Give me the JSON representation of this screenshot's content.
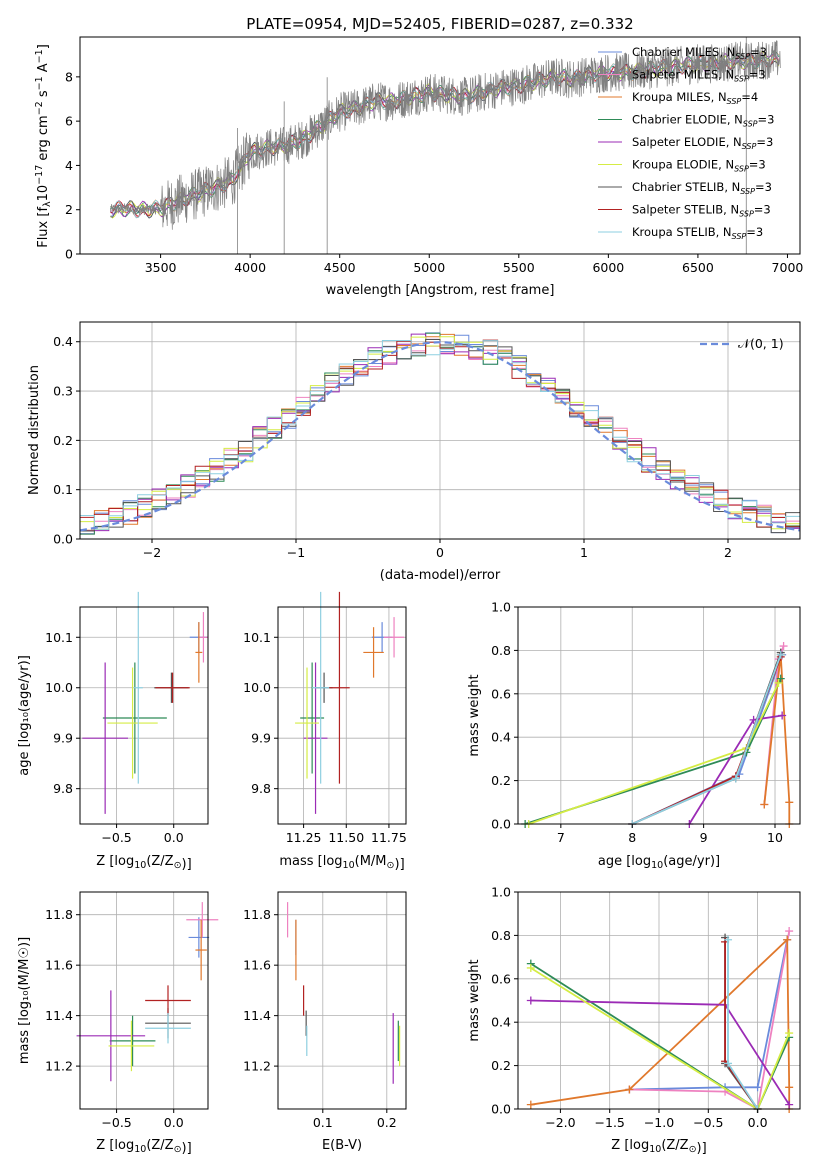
{
  "figure_title": "PLATE=0954, MJD=52405, FIBERID=0287, z=0.332",
  "palette": {
    "Chabrier MILES": "#6a8bdb",
    "Salpeter MILES": "#ee82c0",
    "Kroupa MILES": "#e0782c",
    "Chabrier ELODIE": "#2e8b57",
    "Salpeter ELODIE": "#9b2bb5",
    "Kroupa ELODIE": "#d5ec44",
    "Chabrier STELIB": "#555555",
    "Salpeter STELIB": "#b22222",
    "Kroupa STELIB": "#8ecfe0",
    "normal": "#6a8bdb",
    "spectrum": "#808080"
  },
  "chart_data": [
    {
      "id": "spectrum",
      "type": "line",
      "xlabel": "wavelength [Angstrom, rest frame]",
      "ylabel_main": "Flux [f",
      "ylabel_sub": "λ",
      "ylabel_tail": "10",
      "ylabel_exp1": "−17",
      "ylabel_mid": " erg cm",
      "ylabel_exp2": "−2",
      "ylabel_mid2": " s",
      "ylabel_exp3": "−1",
      "ylabel_mid3": " A",
      "ylabel_exp4": "−1",
      "ylabel_end": "]",
      "xlim": [
        3050,
        7070
      ],
      "ylim": [
        0,
        9.8
      ],
      "xticks": [
        "3500",
        "4000",
        "4500",
        "5000",
        "5500",
        "6000",
        "6500",
        "7000"
      ],
      "yticks": [
        "0",
        "2",
        "4",
        "6",
        "8"
      ],
      "grid": false,
      "legend_position": "lower right",
      "continuum": {
        "x": [
          3220,
          3300,
          3400,
          3500,
          3600,
          3700,
          3800,
          3900,
          4000,
          4100,
          4200,
          4300,
          4400,
          4500,
          4600,
          4700,
          4800,
          4900,
          5000,
          5100,
          5200,
          5300,
          5400,
          5500,
          5600,
          5700,
          5800,
          5900,
          6000,
          6100,
          6200,
          6300,
          6400,
          6500,
          6600,
          6700,
          6800,
          6900,
          6960
        ],
        "y": [
          2.0,
          2.05,
          2.0,
          2.05,
          2.4,
          2.7,
          3.0,
          3.3,
          4.6,
          4.8,
          4.9,
          5.2,
          5.8,
          6.4,
          6.6,
          6.9,
          6.9,
          7.1,
          7.3,
          7.2,
          7.1,
          7.3,
          7.5,
          7.6,
          7.8,
          8.0,
          7.9,
          8.1,
          8.2,
          8.2,
          8.3,
          8.4,
          8.5,
          8.6,
          8.6,
          8.7,
          8.7,
          8.8,
          8.8
        ]
      },
      "legend": [
        {
          "imf": "Chabrier",
          "lib": "MILES",
          "n": "3"
        },
        {
          "imf": "Salpeter",
          "lib": "MILES",
          "n": "3"
        },
        {
          "imf": "Kroupa",
          "lib": "MILES",
          "n": "4"
        },
        {
          "imf": "Chabrier",
          "lib": "ELODIE",
          "n": "3"
        },
        {
          "imf": "Salpeter",
          "lib": "ELODIE",
          "n": "3"
        },
        {
          "imf": "Kroupa",
          "lib": "ELODIE",
          "n": "3"
        },
        {
          "imf": "Chabrier",
          "lib": "STELIB",
          "n": "3"
        },
        {
          "imf": "Salpeter",
          "lib": "STELIB",
          "n": "3"
        },
        {
          "imf": "Kroupa",
          "lib": "STELIB",
          "n": "3"
        }
      ],
      "legend_n_prefix": "N",
      "legend_n_sub": "SSP"
    },
    {
      "id": "residuals",
      "type": "histogram",
      "xlabel": "(data-model)/error",
      "ylabel": "Normed distribution",
      "xlim": [
        -2.5,
        2.5
      ],
      "ylim": [
        0,
        0.44
      ],
      "xticks": [
        -2,
        -1,
        0,
        1,
        2
      ],
      "xtick_labels": [
        "−2",
        "−1",
        "0",
        "1",
        "2"
      ],
      "yticks": [
        0.0,
        0.1,
        0.2,
        0.3,
        0.4
      ],
      "ytick_labels": [
        "0.0",
        "0.1",
        "0.2",
        "0.3",
        "0.4"
      ],
      "grid": true,
      "bin_width": 0.1,
      "legend_label": "𝒩(0, 1)",
      "legend_position": "upper right"
    },
    {
      "id": "age_vs_Z",
      "type": "errorbar",
      "xlabel_main": "Z [log",
      "xlabel_sub": "10",
      "xlabel_tail": "(Z/Z",
      "xlabel_sun": "⊙",
      "xlabel_end": ")]",
      "ylabel": "age  [log₁₀(age/yr)]",
      "xlim": [
        -0.82,
        0.3
      ],
      "ylim": [
        9.73,
        10.16
      ],
      "xticks": [
        -0.5,
        0.0
      ],
      "xtick_labels": [
        "−0.5",
        "0.0"
      ],
      "yticks": [
        9.8,
        9.9,
        10.0,
        10.1
      ],
      "ytick_labels": [
        "9.8",
        "9.9",
        "10.0",
        "10.1"
      ],
      "grid": true,
      "points": [
        {
          "model": "Chabrier MILES",
          "x": 0.22,
          "y": 10.1,
          "xerr": 0.08,
          "yerr": 0.03
        },
        {
          "model": "Salpeter MILES",
          "x": 0.26,
          "y": 10.1,
          "xerr": 0.04,
          "yerr": 0.05
        },
        {
          "model": "Kroupa MILES",
          "x": 0.22,
          "y": 10.07,
          "xerr": 0.03,
          "yerr": 0.06
        },
        {
          "model": "Chabrier ELODIE",
          "x": -0.34,
          "y": 9.94,
          "xerr": 0.28,
          "yerr": 0.11
        },
        {
          "model": "Salpeter ELODIE",
          "x": -0.6,
          "y": 9.9,
          "xerr": 0.2,
          "yerr": 0.15
        },
        {
          "model": "Kroupa ELODIE",
          "x": -0.36,
          "y": 9.93,
          "xerr": 0.22,
          "yerr": 0.11
        },
        {
          "model": "Chabrier STELIB",
          "x": -0.02,
          "y": 10.0,
          "xerr": 0.15,
          "yerr": 0.03
        },
        {
          "model": "Salpeter STELIB",
          "x": -0.01,
          "y": 10.0,
          "xerr": 0.15,
          "yerr": 0.03
        },
        {
          "model": "Kroupa STELIB",
          "x": -0.31,
          "y": 10.0,
          "xerr": 0.04,
          "yerr": 0.19
        }
      ]
    },
    {
      "id": "age_vs_mass",
      "type": "errorbar",
      "xlabel_main": "mass [log",
      "xlabel_sub": "10",
      "xlabel_tail": "(M/M",
      "xlabel_sun": "⊙",
      "xlabel_end": ")]",
      "xlim": [
        11.1,
        11.85
      ],
      "ylim": [
        9.73,
        10.16
      ],
      "xticks": [
        11.25,
        11.5,
        11.75
      ],
      "xtick_labels": [
        "11.25",
        "11.50",
        "11.75"
      ],
      "yticks": [
        9.8,
        9.9,
        10.0,
        10.1
      ],
      "ytick_labels": [
        "9.8",
        "9.9",
        "10.0",
        "10.1"
      ],
      "grid": true,
      "points": [
        {
          "model": "Chabrier MILES",
          "x": 11.71,
          "y": 10.1,
          "xerr": 0.06,
          "yerr": 0.03
        },
        {
          "model": "Salpeter MILES",
          "x": 11.78,
          "y": 10.1,
          "xerr": 0.06,
          "yerr": 0.04
        },
        {
          "model": "Kroupa MILES",
          "x": 11.66,
          "y": 10.07,
          "xerr": 0.06,
          "yerr": 0.05
        },
        {
          "model": "Chabrier ELODIE",
          "x": 11.3,
          "y": 9.94,
          "xerr": 0.07,
          "yerr": 0.11
        },
        {
          "model": "Salpeter ELODIE",
          "x": 11.32,
          "y": 9.9,
          "xerr": 0.07,
          "yerr": 0.15
        },
        {
          "model": "Kroupa ELODIE",
          "x": 11.27,
          "y": 9.93,
          "xerr": 0.07,
          "yerr": 0.11
        },
        {
          "model": "Chabrier STELIB",
          "x": 11.37,
          "y": 10.0,
          "xerr": 0.05,
          "yerr": 0.03
        },
        {
          "model": "Salpeter STELIB",
          "x": 11.46,
          "y": 10.0,
          "xerr": 0.06,
          "yerr": 0.19
        },
        {
          "model": "Kroupa STELIB",
          "x": 11.35,
          "y": 10.0,
          "xerr": 0.05,
          "yerr": 0.19
        }
      ]
    },
    {
      "id": "weight_vs_age",
      "type": "line",
      "xlabel_main": "age  [log",
      "xlabel_sub": "10",
      "xlabel_tail": "(age/yr)]",
      "ylabel": "mass weight",
      "xlim": [
        6.4,
        10.35
      ],
      "ylim": [
        0,
        1.0
      ],
      "xticks": [
        7,
        8,
        9,
        10
      ],
      "xtick_labels": [
        "7",
        "8",
        "9",
        "10"
      ],
      "yticks": [
        0.0,
        0.2,
        0.4,
        0.6,
        0.8,
        1.0
      ],
      "ytick_labels": [
        "0.0",
        "0.2",
        "0.4",
        "0.6",
        "0.8",
        "1.0"
      ],
      "grid": true,
      "series": [
        {
          "model": "Chabrier MILES",
          "x": [
            8.0,
            9.5,
            10.1
          ],
          "y": [
            0.0,
            0.23,
            0.78
          ]
        },
        {
          "model": "Salpeter MILES",
          "x": [
            9.85,
            10.05,
            10.12
          ],
          "y": [
            0.09,
            0.76,
            0.82
          ]
        },
        {
          "model": "Kroupa MILES",
          "x": [
            9.85,
            10.08,
            10.2,
            10.2
          ],
          "y": [
            0.09,
            0.78,
            0.1,
            0.0
          ]
        },
        {
          "model": "Chabrier ELODIE",
          "x": [
            6.5,
            9.6,
            10.08
          ],
          "y": [
            0.0,
            0.33,
            0.67
          ]
        },
        {
          "model": "Salpeter ELODIE",
          "x": [
            8.8,
            9.7,
            10.1
          ],
          "y": [
            0.0,
            0.48,
            0.5
          ]
        },
        {
          "model": "Kroupa ELODIE",
          "x": [
            6.55,
            9.6,
            10.05
          ],
          "y": [
            0.0,
            0.35,
            0.65
          ]
        },
        {
          "model": "Chabrier STELIB",
          "x": [
            8.0,
            9.45,
            10.08
          ],
          "y": [
            0.0,
            0.21,
            0.79
          ]
        },
        {
          "model": "Salpeter STELIB",
          "x": [
            8.0,
            9.45,
            10.08
          ],
          "y": [
            0.0,
            0.22,
            0.77
          ]
        },
        {
          "model": "Kroupa STELIB",
          "x": [
            8.0,
            9.45,
            10.08
          ],
          "y": [
            0.0,
            0.21,
            0.78
          ]
        }
      ]
    },
    {
      "id": "mass_vs_Z",
      "type": "errorbar",
      "xlabel_main": "Z [log",
      "xlabel_sub": "10",
      "xlabel_tail": "(Z/Z",
      "xlabel_sun": "⊙",
      "xlabel_end": ")]",
      "ylabel": "mass [log₁₀(M/M☉)]",
      "xlim": [
        -0.82,
        0.3
      ],
      "ylim": [
        11.03,
        11.89
      ],
      "xticks": [
        -0.5,
        0.0
      ],
      "xtick_labels": [
        "−0.5",
        "0.0"
      ],
      "yticks": [
        11.2,
        11.4,
        11.6,
        11.8
      ],
      "ytick_labels": [
        "11.2",
        "11.4",
        "11.6",
        "11.8"
      ],
      "grid": true,
      "points": [
        {
          "model": "Chabrier MILES",
          "x": 0.22,
          "y": 11.71,
          "xerr": 0.09,
          "yerr": 0.08
        },
        {
          "model": "Salpeter MILES",
          "x": 0.25,
          "y": 11.78,
          "xerr": 0.14,
          "yerr": 0.07
        },
        {
          "model": "Kroupa MILES",
          "x": 0.24,
          "y": 11.66,
          "xerr": 0.05,
          "yerr": 0.12
        },
        {
          "model": "Chabrier ELODIE",
          "x": -0.36,
          "y": 11.3,
          "xerr": 0.2,
          "yerr": 0.1
        },
        {
          "model": "Salpeter ELODIE",
          "x": -0.55,
          "y": 11.32,
          "xerr": 0.3,
          "yerr": 0.18
        },
        {
          "model": "Kroupa ELODIE",
          "x": -0.37,
          "y": 11.28,
          "xerr": 0.2,
          "yerr": 0.1
        },
        {
          "model": "Chabrier STELIB",
          "x": -0.05,
          "y": 11.37,
          "xerr": 0.2,
          "yerr": 0.06
        },
        {
          "model": "Salpeter STELIB",
          "x": -0.05,
          "y": 11.46,
          "xerr": 0.2,
          "yerr": 0.06
        },
        {
          "model": "Kroupa STELIB",
          "x": -0.05,
          "y": 11.35,
          "xerr": 0.2,
          "yerr": 0.06
        }
      ]
    },
    {
      "id": "mass_vs_EBV",
      "type": "errorbar",
      "xlabel": "E(B-V)",
      "xlim": [
        0.03,
        0.23
      ],
      "ylim": [
        11.03,
        11.89
      ],
      "xticks": [
        0.1,
        0.2
      ],
      "xtick_labels": [
        "0.1",
        "0.2"
      ],
      "yticks": [
        11.2,
        11.4,
        11.6,
        11.8
      ],
      "ytick_labels": [
        "11.2",
        "11.4",
        "11.6",
        "11.8"
      ],
      "grid": true,
      "points": [
        {
          "model": "Chabrier MILES",
          "x": 0.058,
          "y": 11.71,
          "xerr": 0.0,
          "yerr": 0.07
        },
        {
          "model": "Salpeter MILES",
          "x": 0.045,
          "y": 11.78,
          "xerr": 0.0,
          "yerr": 0.07
        },
        {
          "model": "Kroupa MILES",
          "x": 0.058,
          "y": 11.66,
          "xerr": 0.0,
          "yerr": 0.12
        },
        {
          "model": "Chabrier ELODIE",
          "x": 0.218,
          "y": 11.3,
          "xerr": 0.0,
          "yerr": 0.08
        },
        {
          "model": "Salpeter ELODIE",
          "x": 0.21,
          "y": 11.27,
          "xerr": 0.0,
          "yerr": 0.14
        },
        {
          "model": "Kroupa ELODIE",
          "x": 0.22,
          "y": 11.28,
          "xerr": 0.0,
          "yerr": 0.08
        },
        {
          "model": "Chabrier STELIB",
          "x": 0.074,
          "y": 11.37,
          "xerr": 0.0,
          "yerr": 0.05
        },
        {
          "model": "Salpeter STELIB",
          "x": 0.07,
          "y": 11.46,
          "xerr": 0.0,
          "yerr": 0.06
        },
        {
          "model": "Kroupa STELIB",
          "x": 0.075,
          "y": 11.3,
          "xerr": 0.0,
          "yerr": 0.06
        }
      ]
    },
    {
      "id": "weight_vs_Z",
      "type": "line",
      "xlabel_main": "Z [log",
      "xlabel_sub": "10",
      "xlabel_tail": "(Z/Z",
      "xlabel_sun": "⊙",
      "xlabel_end": ")]",
      "ylabel": "mass weight",
      "xlim": [
        -2.43,
        0.43
      ],
      "ylim": [
        0,
        1.0
      ],
      "xticks": [
        -2.0,
        -1.5,
        -1.0,
        -0.5,
        0.0
      ],
      "xtick_labels": [
        "−2.0",
        "−1.5",
        "−1.0",
        "−0.5",
        "0.0"
      ],
      "yticks": [
        0.0,
        0.2,
        0.4,
        0.6,
        0.8,
        1.0
      ],
      "ytick_labels": [
        "0.0",
        "0.2",
        "0.4",
        "0.6",
        "0.8",
        "1.0"
      ],
      "grid": true,
      "series": [
        {
          "model": "Chabrier MILES",
          "x": [
            -1.3,
            -0.33,
            0.0,
            0.3
          ],
          "y": [
            0.09,
            0.1,
            0.1,
            0.78
          ]
        },
        {
          "model": "Salpeter MILES",
          "x": [
            -1.3,
            -0.33,
            0.0,
            0.32
          ],
          "y": [
            0.09,
            0.08,
            0.0,
            0.82
          ]
        },
        {
          "model": "Kroupa MILES",
          "x": [
            -2.3,
            -1.3,
            0.3,
            0.32,
            0.32
          ],
          "y": [
            0.02,
            0.09,
            0.78,
            0.1,
            0.0
          ]
        },
        {
          "model": "Chabrier ELODIE",
          "x": [
            -2.3,
            0.0,
            0.32
          ],
          "y": [
            0.67,
            0.0,
            0.33
          ]
        },
        {
          "model": "Salpeter ELODIE",
          "x": [
            -2.3,
            -0.33,
            0.32
          ],
          "y": [
            0.5,
            0.48,
            0.02
          ]
        },
        {
          "model": "Kroupa ELODIE",
          "x": [
            -2.3,
            0.0,
            0.32
          ],
          "y": [
            0.65,
            0.0,
            0.35
          ]
        },
        {
          "model": "Chabrier STELIB",
          "x": [
            -0.33,
            -0.33,
            0.0
          ],
          "y": [
            0.79,
            0.21,
            0.0
          ]
        },
        {
          "model": "Salpeter STELIB",
          "x": [
            -0.33,
            -0.33,
            0.0
          ],
          "y": [
            0.77,
            0.22,
            0.0
          ]
        },
        {
          "model": "Kroupa STELIB",
          "x": [
            -0.3,
            -0.3,
            0.0
          ],
          "y": [
            0.78,
            0.21,
            0.0
          ]
        }
      ]
    }
  ]
}
